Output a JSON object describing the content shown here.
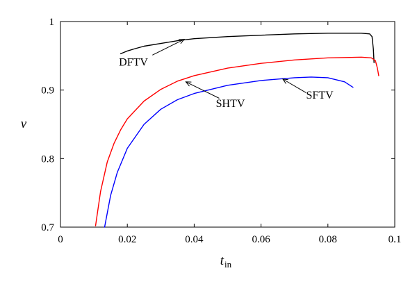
{
  "chart_data": {
    "type": "line",
    "title": "",
    "xlabel": "t",
    "xlabel_subscript": "in",
    "ylabel": "ν",
    "xlim": [
      0,
      0.1
    ],
    "ylim": [
      0.7,
      1.0
    ],
    "x_ticks": [
      0,
      0.02,
      0.04,
      0.06,
      0.08,
      0.1
    ],
    "x_tick_labels": [
      "0",
      "0.02",
      "0.04",
      "0.06",
      "0.08",
      "0.1"
    ],
    "y_ticks": [
      0.7,
      0.8,
      0.9,
      1.0
    ],
    "y_tick_labels": [
      "0.7",
      "0.8",
      "0.9",
      "1"
    ],
    "grid": false,
    "series": [
      {
        "name": "DFTV",
        "color": "#000000",
        "points": [
          [
            0.018,
            0.953
          ],
          [
            0.02,
            0.957
          ],
          [
            0.022,
            0.96
          ],
          [
            0.025,
            0.964
          ],
          [
            0.03,
            0.968
          ],
          [
            0.035,
            0.972
          ],
          [
            0.04,
            0.975
          ],
          [
            0.05,
            0.978
          ],
          [
            0.06,
            0.98
          ],
          [
            0.07,
            0.982
          ],
          [
            0.08,
            0.983
          ],
          [
            0.09,
            0.983
          ],
          [
            0.0925,
            0.982
          ],
          [
            0.0932,
            0.978
          ],
          [
            0.0936,
            0.96
          ],
          [
            0.0938,
            0.94
          ]
        ]
      },
      {
        "name": "SHTV",
        "color": "#ff0000",
        "points": [
          [
            0.0105,
            0.702
          ],
          [
            0.012,
            0.752
          ],
          [
            0.014,
            0.795
          ],
          [
            0.016,
            0.822
          ],
          [
            0.018,
            0.842
          ],
          [
            0.02,
            0.858
          ],
          [
            0.025,
            0.884
          ],
          [
            0.03,
            0.901
          ],
          [
            0.035,
            0.913
          ],
          [
            0.04,
            0.921
          ],
          [
            0.05,
            0.932
          ],
          [
            0.06,
            0.939
          ],
          [
            0.07,
            0.944
          ],
          [
            0.08,
            0.947
          ],
          [
            0.09,
            0.948
          ],
          [
            0.093,
            0.947
          ],
          [
            0.0942,
            0.943
          ],
          [
            0.0948,
            0.932
          ],
          [
            0.0952,
            0.921
          ]
        ]
      },
      {
        "name": "SFTV",
        "color": "#0000ff",
        "points": [
          [
            0.0132,
            0.7
          ],
          [
            0.015,
            0.746
          ],
          [
            0.017,
            0.78
          ],
          [
            0.02,
            0.815
          ],
          [
            0.025,
            0.85
          ],
          [
            0.03,
            0.872
          ],
          [
            0.035,
            0.886
          ],
          [
            0.04,
            0.895
          ],
          [
            0.05,
            0.907
          ],
          [
            0.06,
            0.914
          ],
          [
            0.07,
            0.918
          ],
          [
            0.075,
            0.919
          ],
          [
            0.08,
            0.918
          ],
          [
            0.085,
            0.912
          ],
          [
            0.0875,
            0.904
          ]
        ]
      }
    ],
    "annotations": [
      {
        "text": "DFTV",
        "label_at": [
          0.0175,
          0.9355
        ],
        "arrow_from": [
          0.0275,
          0.951
        ],
        "arrow_to": [
          0.037,
          0.974
        ]
      },
      {
        "text": "SHTV",
        "label_at": [
          0.0465,
          0.8755
        ],
        "arrow_from": [
          0.0475,
          0.888
        ],
        "arrow_to": [
          0.0375,
          0.912
        ]
      },
      {
        "text": "SFTV",
        "label_at": [
          0.0735,
          0.8875
        ],
        "arrow_from": [
          0.0735,
          0.896
        ],
        "arrow_to": [
          0.0665,
          0.916
        ]
      }
    ]
  }
}
